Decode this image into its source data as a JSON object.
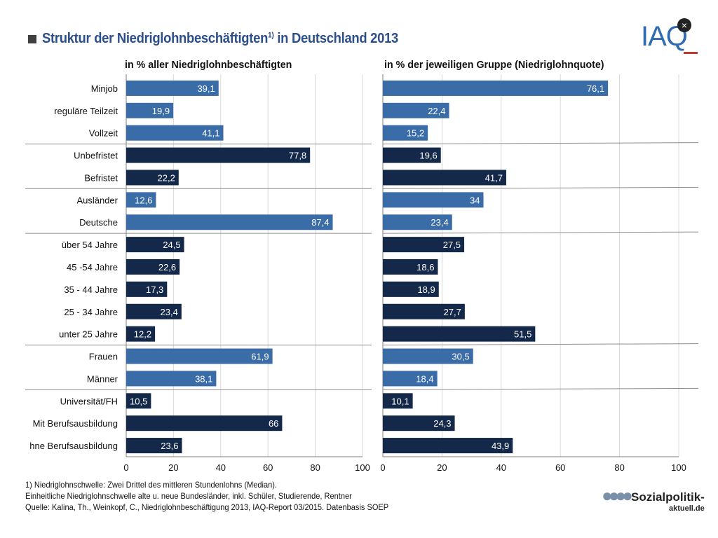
{
  "title": "Struktur der Niedriglohnbeschäftigten",
  "title_sup": "1)",
  "title_suffix": " in Deutschland 2013",
  "logo": {
    "text": "IAQ",
    "close_glyph": "×",
    "icon": "close-icon"
  },
  "colors": {
    "light": "#3a6ca8",
    "dark": "#14294a",
    "separator": "#8c8c8c",
    "grid": "#d9d9d9"
  },
  "chart_data": {
    "type": "bar",
    "orientation": "horizontal",
    "categories": [
      "Minjob",
      "reguläre Teilzeit",
      "Vollzeit",
      "Unbefristet",
      "Befristet",
      "Ausländer",
      "Deutsche",
      "über 54 Jahre",
      "45 -54 Jahre",
      "35 - 44 Jahre",
      "25 - 34 Jahre",
      "unter 25 Jahre",
      "Frauen",
      "Männer",
      "Universität/FH",
      "Mit Berufsausbildung",
      "Ohne Berufsausbildung"
    ],
    "category_labels": [
      "Minjob",
      "reguläre Teilzeit",
      "Vollzeit",
      "Unbefristet",
      "Befristet",
      "Ausländer",
      "Deutsche",
      "über 54 Jahre",
      "45 -54 Jahre",
      "35 - 44 Jahre",
      "25 - 34 Jahre",
      "unter 25 Jahre",
      "Frauen",
      "Männer",
      "Universität/FH",
      "Mit Berufsausbildung",
      "hne Berufsausbildung"
    ],
    "shades": [
      "light",
      "light",
      "light",
      "dark",
      "dark",
      "light",
      "light",
      "dark",
      "dark",
      "dark",
      "dark",
      "dark",
      "light",
      "light",
      "dark",
      "dark",
      "dark"
    ],
    "group_breaks_after": [
      2,
      4,
      6,
      11,
      13
    ],
    "panels": [
      {
        "title": "in % aller Niedriglohnbeschäftigten",
        "values": [
          39.1,
          19.9,
          41.1,
          77.8,
          22.2,
          12.6,
          87.4,
          24.5,
          22.6,
          17.3,
          23.4,
          12.2,
          61.9,
          38.1,
          10.5,
          66,
          23.6
        ],
        "value_labels": [
          "39,1",
          "19,9",
          "41,1",
          "77,8",
          "22,2",
          "12,6",
          "87,4",
          "24,5",
          "22,6",
          "17,3",
          "23,4",
          "12,2",
          "61,9",
          "38,1",
          "10,5",
          "66",
          "23,6"
        ]
      },
      {
        "title": "in % der jeweiligen Gruppe (Niedriglohnquote)",
        "values": [
          76.1,
          22.4,
          15.2,
          19.6,
          41.7,
          34,
          23.4,
          27.5,
          18.6,
          18.9,
          27.7,
          51.5,
          30.5,
          18.4,
          10.1,
          24.3,
          43.9
        ],
        "value_labels": [
          "76,1",
          "22,4",
          "15,2",
          "19,6",
          "41,7",
          "34",
          "23,4",
          "27,5",
          "18,6",
          "18,9",
          "27,7",
          "51,5",
          "30,5",
          "18,4",
          "10,1",
          "24,3",
          "43,9"
        ]
      }
    ],
    "xlim": [
      0,
      100
    ],
    "xticks": [
      "0",
      "20",
      "40",
      "60",
      "80",
      "100"
    ],
    "grid": true
  },
  "footnote": {
    "line1": "1) Niedriglohnschwelle: Zwei Drittel des mittleren Stundenlohns (Median).",
    "line2": "Einheitliche Niedriglohnschwelle alte u. neue Bundesländer, inkl. Schüler, Studierende, Rentner",
    "line3": "Quelle: Kalina, Th., Weinkopf, C., Niedriglohnbeschäftigung 2013, IAQ-Report 03/2015.  Datenbasis SOEP"
  },
  "sp_logo": {
    "text": "Sozialpolitik-",
    "sub": "aktuell.de",
    "icon": "people-icon"
  }
}
